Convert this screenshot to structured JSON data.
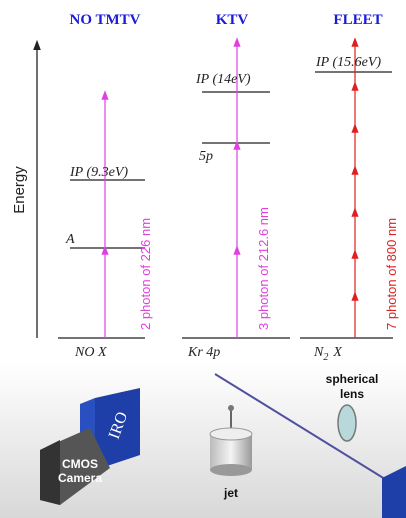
{
  "axis_label": "Energy",
  "columns": [
    {
      "title": "NO TMTV",
      "ground": {
        "base": "NO X"
      },
      "levels": [
        "IP (9.3eV)",
        "A"
      ],
      "photon_label": "2 photon of 226 nm"
    },
    {
      "title": "KTV",
      "ground": {
        "base": "Kr 4p"
      },
      "levels": [
        "IP (14eV)",
        "5p"
      ],
      "photon_label": "3 photon of 212.6 nm"
    },
    {
      "title": "FLEET",
      "ground": {
        "base": "N",
        "sub": "2",
        "rest": "X"
      },
      "levels": [
        "IP (15.6eV)"
      ],
      "photon_label": "7 photon of 800 nm"
    }
  ],
  "setup": {
    "camera": [
      "CMOS",
      "Camera"
    ],
    "intensifier": "IRO",
    "jet": "jet",
    "lens": [
      "spherical",
      "lens"
    ]
  }
}
